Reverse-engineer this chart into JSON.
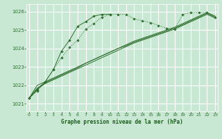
{
  "bg_color": "#c8e8d4",
  "grid_color": "#ffffff",
  "line_color": "#2d6e2d",
  "marker_color": "#2d6e2d",
  "xlabel": "Graphe pression niveau de la mer (hPa)",
  "xlabel_color": "#1a5c1a",
  "ylabel_ticks": [
    1021,
    1022,
    1023,
    1024,
    1025,
    1026
  ],
  "xticks": [
    0,
    1,
    2,
    3,
    4,
    5,
    6,
    7,
    8,
    9,
    10,
    11,
    12,
    13,
    14,
    15,
    16,
    17,
    18,
    19,
    20,
    21,
    22,
    23
  ],
  "ylim": [
    1020.6,
    1026.4
  ],
  "xlim": [
    -0.3,
    23.3
  ],
  "series": {
    "dotted_with_markers": [
      1021.3,
      1021.7,
      1022.2,
      1022.85,
      1023.5,
      1024.05,
      1024.45,
      1025.05,
      1025.35,
      1025.7,
      1025.85,
      1025.85,
      1025.85,
      1025.6,
      1025.5,
      1025.4,
      1025.25,
      1025.1,
      1025.05,
      1025.85,
      1025.95,
      1025.95,
      1025.95,
      1025.7
    ],
    "solid_with_markers": [
      1021.3,
      1021.75,
      1022.2,
      1022.85,
      1023.85,
      1024.45,
      1025.2,
      1025.45,
      1025.75,
      1025.85,
      1025.85,
      null,
      null,
      null,
      null,
      null,
      null,
      null,
      null,
      null,
      null,
      null,
      null,
      null
    ],
    "solid1": [
      1021.3,
      1021.8,
      1022.1,
      1022.3,
      1022.5,
      1022.7,
      1022.9,
      1023.1,
      1023.3,
      1023.5,
      1023.7,
      1023.9,
      1024.1,
      1024.3,
      1024.45,
      1024.6,
      1024.75,
      1024.9,
      1025.05,
      1025.25,
      1025.45,
      1025.65,
      1025.85,
      1025.65
    ],
    "solid2": [
      1021.3,
      1021.85,
      1022.15,
      1022.35,
      1022.55,
      1022.75,
      1022.95,
      1023.2,
      1023.4,
      1023.6,
      1023.8,
      1024.0,
      1024.15,
      1024.35,
      1024.5,
      1024.65,
      1024.8,
      1024.95,
      1025.1,
      1025.3,
      1025.5,
      1025.7,
      1025.9,
      1025.7
    ],
    "solid3": [
      1021.3,
      1022.0,
      1022.2,
      1022.4,
      1022.6,
      1022.8,
      1023.0,
      1023.2,
      1023.4,
      1023.6,
      1023.8,
      1024.0,
      1024.2,
      1024.4,
      1024.55,
      1024.7,
      1024.85,
      1025.0,
      1025.15,
      1025.35,
      1025.55,
      1025.75,
      1025.95,
      1025.75
    ]
  }
}
